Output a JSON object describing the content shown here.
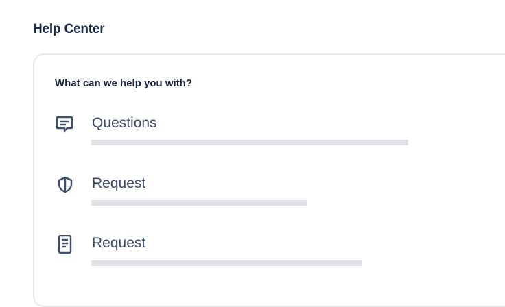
{
  "header": {
    "title": "Help Center"
  },
  "card": {
    "prompt": "What can we help you with?",
    "items": [
      {
        "label": "Questions",
        "icon": "chat-message-icon"
      },
      {
        "label": "Request",
        "icon": "shield-icon"
      },
      {
        "label": "Request",
        "icon": "document-icon"
      }
    ]
  }
}
